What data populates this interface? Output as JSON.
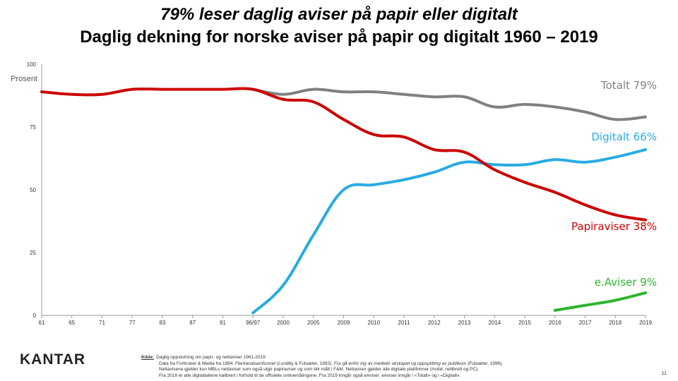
{
  "heading": {
    "line1": "79% leser daglig aviser på papir eller digitalt",
    "line2": "Daglig dekning for norske aviser på papir og digitalt 1960 – 2019"
  },
  "chart_data": {
    "type": "line",
    "ylabel": "Prosent",
    "ylim": [
      0,
      100
    ],
    "yticks": [
      0,
      25,
      50,
      75,
      100
    ],
    "categories": [
      "61",
      "65",
      "71",
      "77",
      "83",
      "87",
      "91",
      "96/97",
      "2000",
      "2005",
      "2009",
      "2010",
      "2011",
      "2012",
      "2013",
      "2014",
      "2015",
      "2016",
      "2017",
      "2018",
      "2019"
    ],
    "grid": false,
    "series": [
      {
        "name": "Totalt",
        "label": "Totalt 79%",
        "color": "#808080",
        "values": [
          null,
          null,
          null,
          null,
          null,
          null,
          null,
          90,
          88,
          90,
          89,
          89,
          88,
          87,
          87,
          83,
          84,
          83,
          81,
          78,
          79
        ]
      },
      {
        "name": "Digitalt",
        "label": "Digitalt 66%",
        "color": "#29abe2",
        "values": [
          null,
          null,
          null,
          null,
          null,
          null,
          null,
          1,
          12,
          32,
          50,
          52,
          54,
          57,
          61,
          60,
          60,
          62,
          61,
          63,
          66
        ]
      },
      {
        "name": "Papiraviser",
        "label": "Papiraviser 38%",
        "color": "#cc0000",
        "values": [
          89,
          88,
          88,
          90,
          90,
          90,
          90,
          90,
          86,
          85,
          78,
          72,
          71,
          66,
          65,
          58,
          53,
          49,
          44,
          40,
          38
        ]
      },
      {
        "name": "e.Aviser",
        "label": "e.Aviser 9%",
        "color": "#2db52d",
        "values": [
          null,
          null,
          null,
          null,
          null,
          null,
          null,
          null,
          null,
          null,
          null,
          null,
          null,
          null,
          null,
          null,
          null,
          2,
          4,
          6,
          9
        ]
      }
    ]
  },
  "footer": {
    "logo": "KANTAR",
    "source_label": "Kilde:",
    "source_line1": "Daglig oppslutning om papir- og nettaviser 1961-2019",
    "source_line2a": "Data fra Forbruker & Media fra 1994.",
    "source_line2b": "Flerkanalsamfunnet",
    "source_line2c": "(Lundby & Futsæter, 1993).",
    "source_line2d": "Fra gå enfor ing av mediebr ukskapel og oppsplitting av publikum",
    "source_line2e": "(Futsæter, 1996).",
    "source_line3": "Nettavisene gjelder kun MBLs nettaviser som også utgir papiraviser og som blir målt i F&M. Nettaviser gjelder alle digitale plattformer (mobil, nettbrett og PC).",
    "source_line4": "Fra 2018 er alle digitaltallene kalibrert i forhold til de offisielle onlinemålingene. Fra 2019 inngår også eAviser. eAviser inngår i «Totalt» og i «Digitalt».",
    "page_number": "11"
  }
}
